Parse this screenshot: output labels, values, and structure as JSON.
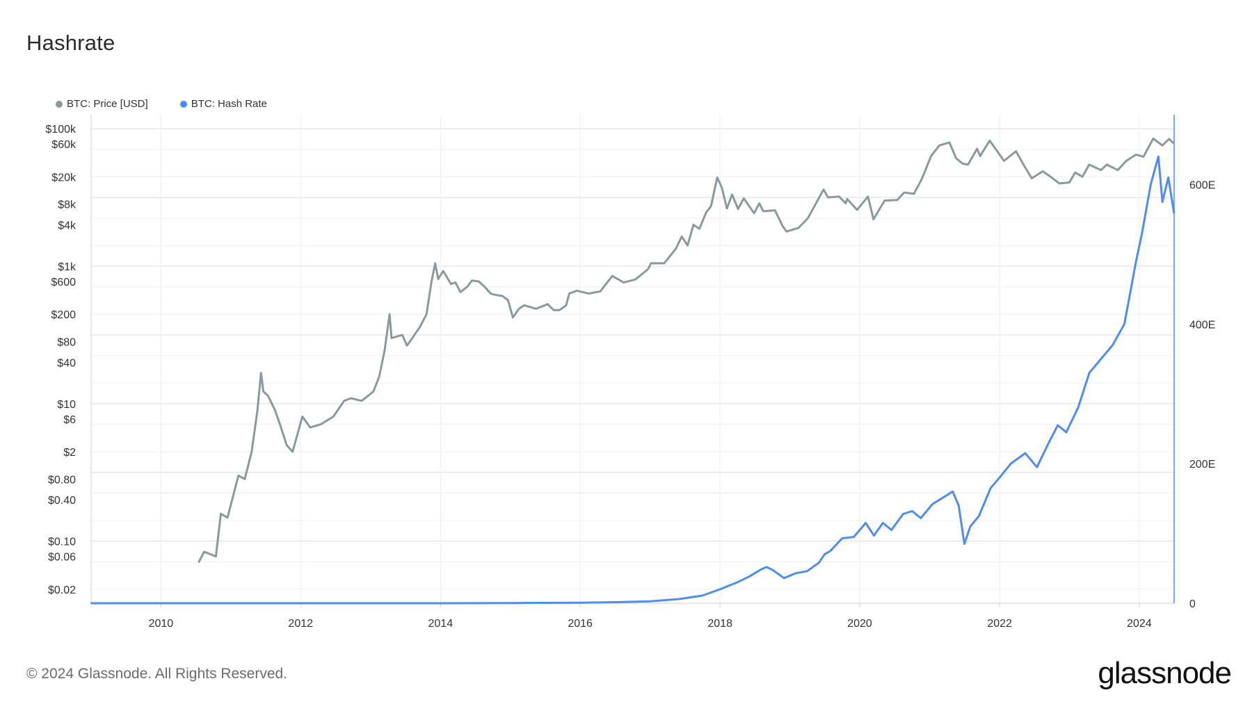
{
  "title": "Hashrate",
  "legend": {
    "price_label": "BTC: Price [USD]",
    "hash_label": "BTC: Hash Rate"
  },
  "footer": {
    "copyright": "© 2024 Glassnode. All Rights Reserved.",
    "brand": "glassnode"
  },
  "colors": {
    "price": "#8a9a9c",
    "hash": "#4f8cf0",
    "grid": "#e6e6e6",
    "axis": "#cfcfcf"
  },
  "chart_data": {
    "type": "line",
    "xlabel": "",
    "x_ticks": [
      "2010",
      "2012",
      "2014",
      "2016",
      "2018",
      "2020",
      "2022",
      "2024"
    ],
    "xlim": [
      "2009-01-01",
      "2024-07-01"
    ],
    "y_left": {
      "scale": "log",
      "ticks": [
        "$0.02",
        "$0.06",
        "$0.10",
        "$0.40",
        "$0.80",
        "$2",
        "$6",
        "$10",
        "$40",
        "$80",
        "$200",
        "$600",
        "$1k",
        "$4k",
        "$8k",
        "$20k",
        "$60k",
        "$100k"
      ],
      "tick_values": [
        0.02,
        0.06,
        0.1,
        0.4,
        0.8,
        2,
        6,
        10,
        40,
        80,
        200,
        600,
        1000,
        4000,
        8000,
        20000,
        60000,
        100000
      ],
      "ylim": [
        0.0125,
        160000
      ]
    },
    "y_right": {
      "scale": "linear",
      "ticks": [
        "0",
        "200E",
        "400E",
        "600E"
      ],
      "tick_values": [
        0,
        200,
        400,
        600
      ],
      "ylim": [
        0,
        700
      ]
    },
    "series": [
      {
        "name": "BTC: Price [USD]",
        "axis": "left",
        "points": [
          [
            "2010-07-18",
            0.05
          ],
          [
            "2010-08-15",
            0.07
          ],
          [
            "2010-10-15",
            0.06
          ],
          [
            "2010-11-10",
            0.25
          ],
          [
            "2010-12-15",
            0.22
          ],
          [
            "2011-02-10",
            0.9
          ],
          [
            "2011-03-15",
            0.8
          ],
          [
            "2011-04-20",
            2.0
          ],
          [
            "2011-05-20",
            8
          ],
          [
            "2011-06-08",
            28
          ],
          [
            "2011-06-20",
            15
          ],
          [
            "2011-07-15",
            13
          ],
          [
            "2011-08-20",
            8
          ],
          [
            "2011-09-15",
            5
          ],
          [
            "2011-10-20",
            2.5
          ],
          [
            "2011-11-20",
            2.0
          ],
          [
            "2012-01-10",
            6.5
          ],
          [
            "2012-02-20",
            4.5
          ],
          [
            "2012-04-15",
            5
          ],
          [
            "2012-06-20",
            6.5
          ],
          [
            "2012-08-15",
            11
          ],
          [
            "2012-09-20",
            12
          ],
          [
            "2012-11-15",
            11
          ],
          [
            "2013-01-15",
            15
          ],
          [
            "2013-02-15",
            25
          ],
          [
            "2013-03-15",
            60
          ],
          [
            "2013-04-10",
            200
          ],
          [
            "2013-04-20",
            90
          ],
          [
            "2013-06-15",
            100
          ],
          [
            "2013-07-10",
            70
          ],
          [
            "2013-09-15",
            130
          ],
          [
            "2013-10-20",
            200
          ],
          [
            "2013-11-15",
            600
          ],
          [
            "2013-12-04",
            1100
          ],
          [
            "2013-12-20",
            650
          ],
          [
            "2014-01-15",
            850
          ],
          [
            "2014-02-25",
            550
          ],
          [
            "2014-03-20",
            580
          ],
          [
            "2014-04-15",
            420
          ],
          [
            "2014-05-20",
            500
          ],
          [
            "2014-06-15",
            620
          ],
          [
            "2014-07-20",
            600
          ],
          [
            "2014-08-20",
            500
          ],
          [
            "2014-09-20",
            400
          ],
          [
            "2014-10-20",
            380
          ],
          [
            "2014-11-20",
            370
          ],
          [
            "2014-12-20",
            320
          ],
          [
            "2015-01-14",
            180
          ],
          [
            "2015-02-15",
            240
          ],
          [
            "2015-03-15",
            270
          ],
          [
            "2015-05-15",
            240
          ],
          [
            "2015-07-15",
            280
          ],
          [
            "2015-08-15",
            230
          ],
          [
            "2015-09-15",
            230
          ],
          [
            "2015-10-20",
            270
          ],
          [
            "2015-11-05",
            400
          ],
          [
            "2015-12-15",
            440
          ],
          [
            "2016-02-15",
            400
          ],
          [
            "2016-04-15",
            430
          ],
          [
            "2016-06-17",
            720
          ],
          [
            "2016-08-15",
            580
          ],
          [
            "2016-10-15",
            640
          ],
          [
            "2016-12-20",
            900
          ],
          [
            "2017-01-05",
            1100
          ],
          [
            "2017-03-15",
            1100
          ],
          [
            "2017-05-15",
            1800
          ],
          [
            "2017-06-15",
            2700
          ],
          [
            "2017-07-15",
            2000
          ],
          [
            "2017-08-15",
            4000
          ],
          [
            "2017-09-15",
            3500
          ],
          [
            "2017-10-20",
            6000
          ],
          [
            "2017-11-15",
            7500
          ],
          [
            "2017-12-17",
            19500
          ],
          [
            "2018-01-10",
            14000
          ],
          [
            "2018-02-06",
            6900
          ],
          [
            "2018-03-05",
            11000
          ],
          [
            "2018-04-05",
            6800
          ],
          [
            "2018-05-05",
            9700
          ],
          [
            "2018-06-28",
            5900
          ],
          [
            "2018-07-25",
            8200
          ],
          [
            "2018-08-15",
            6300
          ],
          [
            "2018-10-15",
            6500
          ],
          [
            "2018-11-25",
            3800
          ],
          [
            "2018-12-15",
            3200
          ],
          [
            "2019-02-15",
            3600
          ],
          [
            "2019-04-05",
            5000
          ],
          [
            "2019-05-15",
            8000
          ],
          [
            "2019-06-26",
            13000
          ],
          [
            "2019-07-20",
            10000
          ],
          [
            "2019-09-15",
            10300
          ],
          [
            "2019-10-20",
            8200
          ],
          [
            "2019-10-27",
            9500
          ],
          [
            "2019-12-18",
            6600
          ],
          [
            "2020-02-13",
            10300
          ],
          [
            "2020-03-13",
            4800
          ],
          [
            "2020-05-10",
            9000
          ],
          [
            "2020-07-15",
            9200
          ],
          [
            "2020-08-20",
            11800
          ],
          [
            "2020-10-10",
            11300
          ],
          [
            "2020-11-20",
            18500
          ],
          [
            "2021-01-08",
            40000
          ],
          [
            "2021-02-20",
            57000
          ],
          [
            "2021-04-14",
            63000
          ],
          [
            "2021-05-19",
            37000
          ],
          [
            "2021-06-22",
            31000
          ],
          [
            "2021-07-20",
            30000
          ],
          [
            "2021-09-05",
            51000
          ],
          [
            "2021-09-21",
            40000
          ],
          [
            "2021-11-10",
            67000
          ],
          [
            "2021-12-20",
            47000
          ],
          [
            "2022-01-24",
            34000
          ],
          [
            "2022-03-28",
            47000
          ],
          [
            "2022-05-12",
            28000
          ],
          [
            "2022-06-18",
            19000
          ],
          [
            "2022-08-15",
            24000
          ],
          [
            "2022-09-30",
            19500
          ],
          [
            "2022-11-09",
            16000
          ],
          [
            "2022-12-31",
            16500
          ],
          [
            "2023-01-31",
            23000
          ],
          [
            "2023-03-10",
            20000
          ],
          [
            "2023-04-14",
            30000
          ],
          [
            "2023-06-15",
            25000
          ],
          [
            "2023-07-15",
            30000
          ],
          [
            "2023-09-11",
            25000
          ],
          [
            "2023-10-25",
            34000
          ],
          [
            "2023-12-15",
            42000
          ],
          [
            "2024-01-23",
            39000
          ],
          [
            "2024-03-14",
            72000
          ],
          [
            "2024-05-01",
            57000
          ],
          [
            "2024-06-05",
            71000
          ],
          [
            "2024-06-30",
            61000
          ]
        ]
      },
      {
        "name": "BTC: Hash Rate",
        "axis": "right",
        "points": [
          [
            "2009-01-03",
            0
          ],
          [
            "2013-01-01",
            2e-05
          ],
          [
            "2014-01-01",
            0.01
          ],
          [
            "2015-01-01",
            0.3
          ],
          [
            "2016-01-01",
            0.8
          ],
          [
            "2016-07-01",
            1.5
          ],
          [
            "2017-01-01",
            2.8
          ],
          [
            "2017-06-01",
            6
          ],
          [
            "2017-10-01",
            11
          ],
          [
            "2018-01-01",
            20
          ],
          [
            "2018-04-01",
            30
          ],
          [
            "2018-06-01",
            38
          ],
          [
            "2018-08-01",
            48
          ],
          [
            "2018-09-01",
            52
          ],
          [
            "2018-10-01",
            48
          ],
          [
            "2018-11-01",
            42
          ],
          [
            "2018-12-01",
            36
          ],
          [
            "2019-02-01",
            43
          ],
          [
            "2019-04-01",
            46
          ],
          [
            "2019-06-01",
            58
          ],
          [
            "2019-07-01",
            70
          ],
          [
            "2019-08-01",
            75
          ],
          [
            "2019-10-01",
            93
          ],
          [
            "2019-12-01",
            95
          ],
          [
            "2020-02-01",
            115
          ],
          [
            "2020-03-15",
            97
          ],
          [
            "2020-05-01",
            115
          ],
          [
            "2020-06-15",
            105
          ],
          [
            "2020-08-15",
            128
          ],
          [
            "2020-10-01",
            132
          ],
          [
            "2020-11-15",
            122
          ],
          [
            "2021-01-15",
            142
          ],
          [
            "2021-03-15",
            152
          ],
          [
            "2021-05-01",
            160
          ],
          [
            "2021-06-01",
            140
          ],
          [
            "2021-07-01",
            85
          ],
          [
            "2021-08-01",
            110
          ],
          [
            "2021-09-15",
            125
          ],
          [
            "2021-11-15",
            165
          ],
          [
            "2022-01-01",
            180
          ],
          [
            "2022-03-01",
            200
          ],
          [
            "2022-05-15",
            215
          ],
          [
            "2022-07-15",
            195
          ],
          [
            "2022-09-15",
            230
          ],
          [
            "2022-11-01",
            255
          ],
          [
            "2022-12-15",
            245
          ],
          [
            "2023-02-15",
            280
          ],
          [
            "2023-04-15",
            330
          ],
          [
            "2023-06-15",
            350
          ],
          [
            "2023-08-15",
            370
          ],
          [
            "2023-10-15",
            400
          ],
          [
            "2023-12-15",
            490
          ],
          [
            "2024-01-15",
            530
          ],
          [
            "2024-03-01",
            600
          ],
          [
            "2024-04-10",
            640
          ],
          [
            "2024-05-01",
            575
          ],
          [
            "2024-06-01",
            610
          ],
          [
            "2024-06-30",
            560
          ]
        ]
      }
    ],
    "grid": true,
    "legend_position": "top-left"
  }
}
